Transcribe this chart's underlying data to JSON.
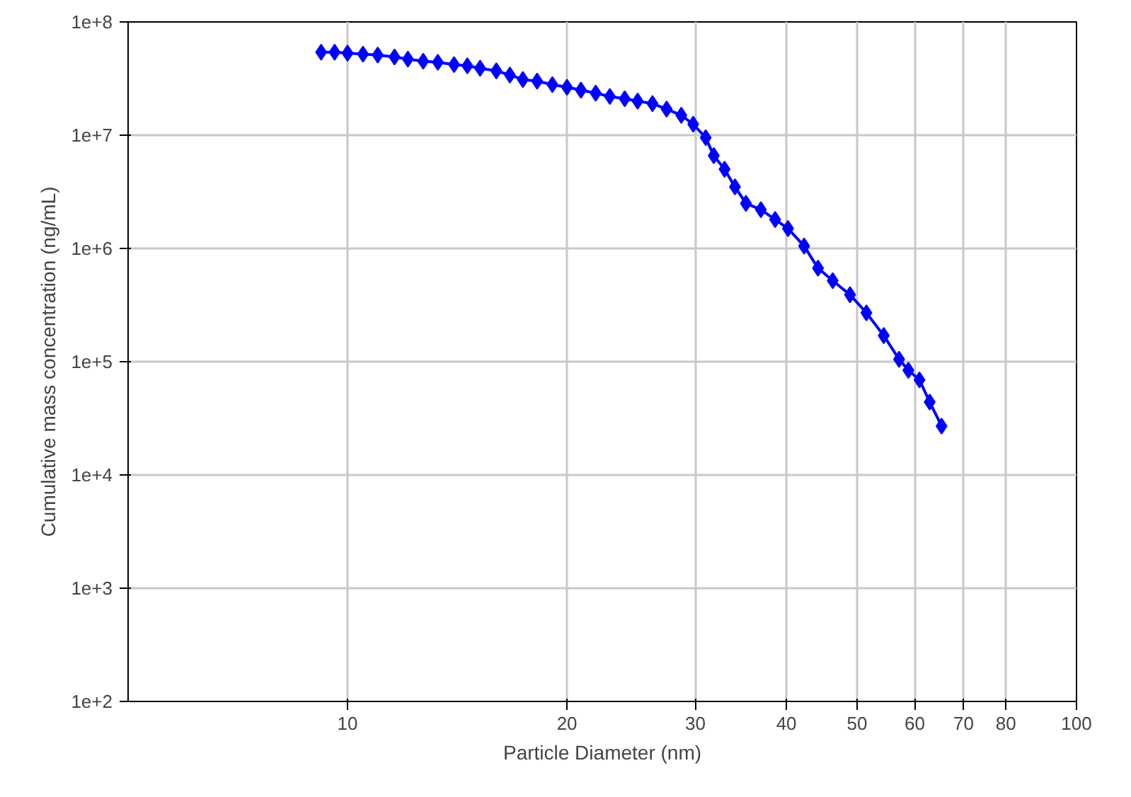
{
  "chart_data": {
    "type": "line",
    "xlabel": "Particle Diameter (nm)",
    "ylabel": "Cumulative mass concentration (ng/mL)",
    "log": "xy",
    "grid": true,
    "marker": "diamond",
    "line_style": "solid",
    "xlim": [
      5,
      100
    ],
    "xticks": [
      10,
      20,
      30,
      40,
      50,
      60,
      70,
      80,
      100
    ],
    "ylim": [
      100,
      100000000
    ],
    "yticks": [
      {
        "value": 100,
        "label": "1e+2"
      },
      {
        "value": 1000,
        "label": "1e+3"
      },
      {
        "value": 10000,
        "label": "1e+4"
      },
      {
        "value": 100000,
        "label": "1e+5"
      },
      {
        "value": 1000000,
        "label": "1e+6"
      },
      {
        "value": 10000000,
        "label": "1e+7"
      },
      {
        "value": 100000000,
        "label": "1e+8"
      }
    ],
    "series": [
      {
        "color": "#0000ff",
        "x": [
          9.2,
          9.6,
          10,
          10.5,
          11,
          11.6,
          12.1,
          12.7,
          13.3,
          14,
          14.6,
          15.2,
          16,
          16.7,
          17.4,
          18.2,
          19.1,
          20,
          20.9,
          21.9,
          22.9,
          24,
          25,
          26.2,
          27.4,
          28.7,
          29.8,
          31,
          31.8,
          32.9,
          34,
          35.2,
          36.9,
          38.6,
          40.2,
          42.3,
          44.2,
          46.3,
          48.9,
          51.5,
          54.4,
          57.1,
          58.8,
          60.9,
          62.9,
          65.3
        ],
        "values": [
          54000000,
          54000000,
          53000000,
          52000000,
          51000000,
          49000000,
          47000000,
          45000000,
          44000000,
          42000000,
          41000000,
          39000000,
          37000000,
          34000000,
          31000000,
          30000000,
          28000000,
          26500000,
          25000000,
          23500000,
          22000000,
          21000000,
          20000000,
          19000000,
          17000000,
          15000000,
          12500000,
          9500000,
          6600000,
          5000000,
          3500000,
          2500000,
          2200000,
          1800000,
          1500000,
          1050000,
          670000,
          520000,
          390000,
          270000,
          170000,
          105000,
          84000,
          69000,
          44000,
          27000
        ]
      }
    ]
  }
}
